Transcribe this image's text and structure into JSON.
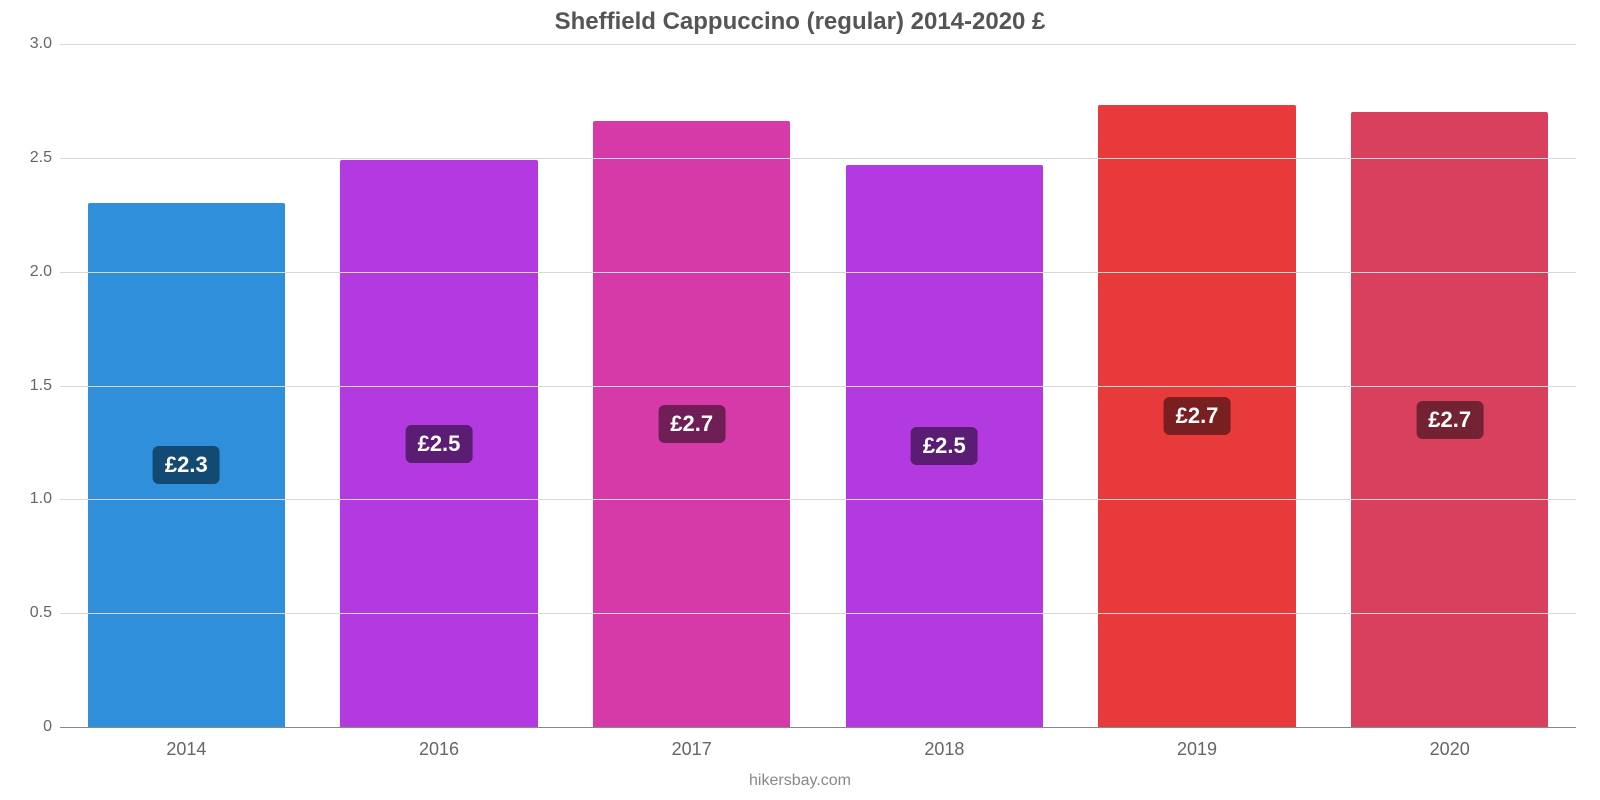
{
  "chart": {
    "type": "bar",
    "title": "Sheffield Cappuccino (regular) 2014-2020 £",
    "title_color": "#555555",
    "title_fontsize": 24,
    "background_color": "#ffffff",
    "grid_color": "#d8d8d8",
    "axis_color": "#888888",
    "tick_color": "#666666",
    "tick_fontsize": 16,
    "xlabel_fontsize": 18,
    "ylim": [
      0,
      3.0
    ],
    "yticks": [
      "0",
      "0.5",
      "1.0",
      "1.5",
      "2.0",
      "2.5",
      "3.0"
    ],
    "ytick_values": [
      0,
      0.5,
      1.0,
      1.5,
      2.0,
      2.5,
      3.0
    ],
    "categories": [
      "2014",
      "2016",
      "2017",
      "2018",
      "2019",
      "2020"
    ],
    "values": [
      2.3,
      2.49,
      2.66,
      2.47,
      2.73,
      2.7
    ],
    "value_labels": [
      "£2.3",
      "£2.5",
      "£2.7",
      "£2.5",
      "£2.7",
      "£2.7"
    ],
    "bar_colors": [
      "#2f8fda",
      "#b339e0",
      "#d63aa8",
      "#b339e0",
      "#e83a3a",
      "#d8405e"
    ],
    "label_bg_colors": [
      "#134a73",
      "#5a1d73",
      "#701e56",
      "#5a1d73",
      "#7a1f1f",
      "#722232"
    ],
    "label_text_color": "#ffffff",
    "label_fontsize": 22,
    "bar_width": 0.78,
    "source": "hikersbay.com",
    "source_color": "#888888",
    "source_fontsize": 16
  }
}
